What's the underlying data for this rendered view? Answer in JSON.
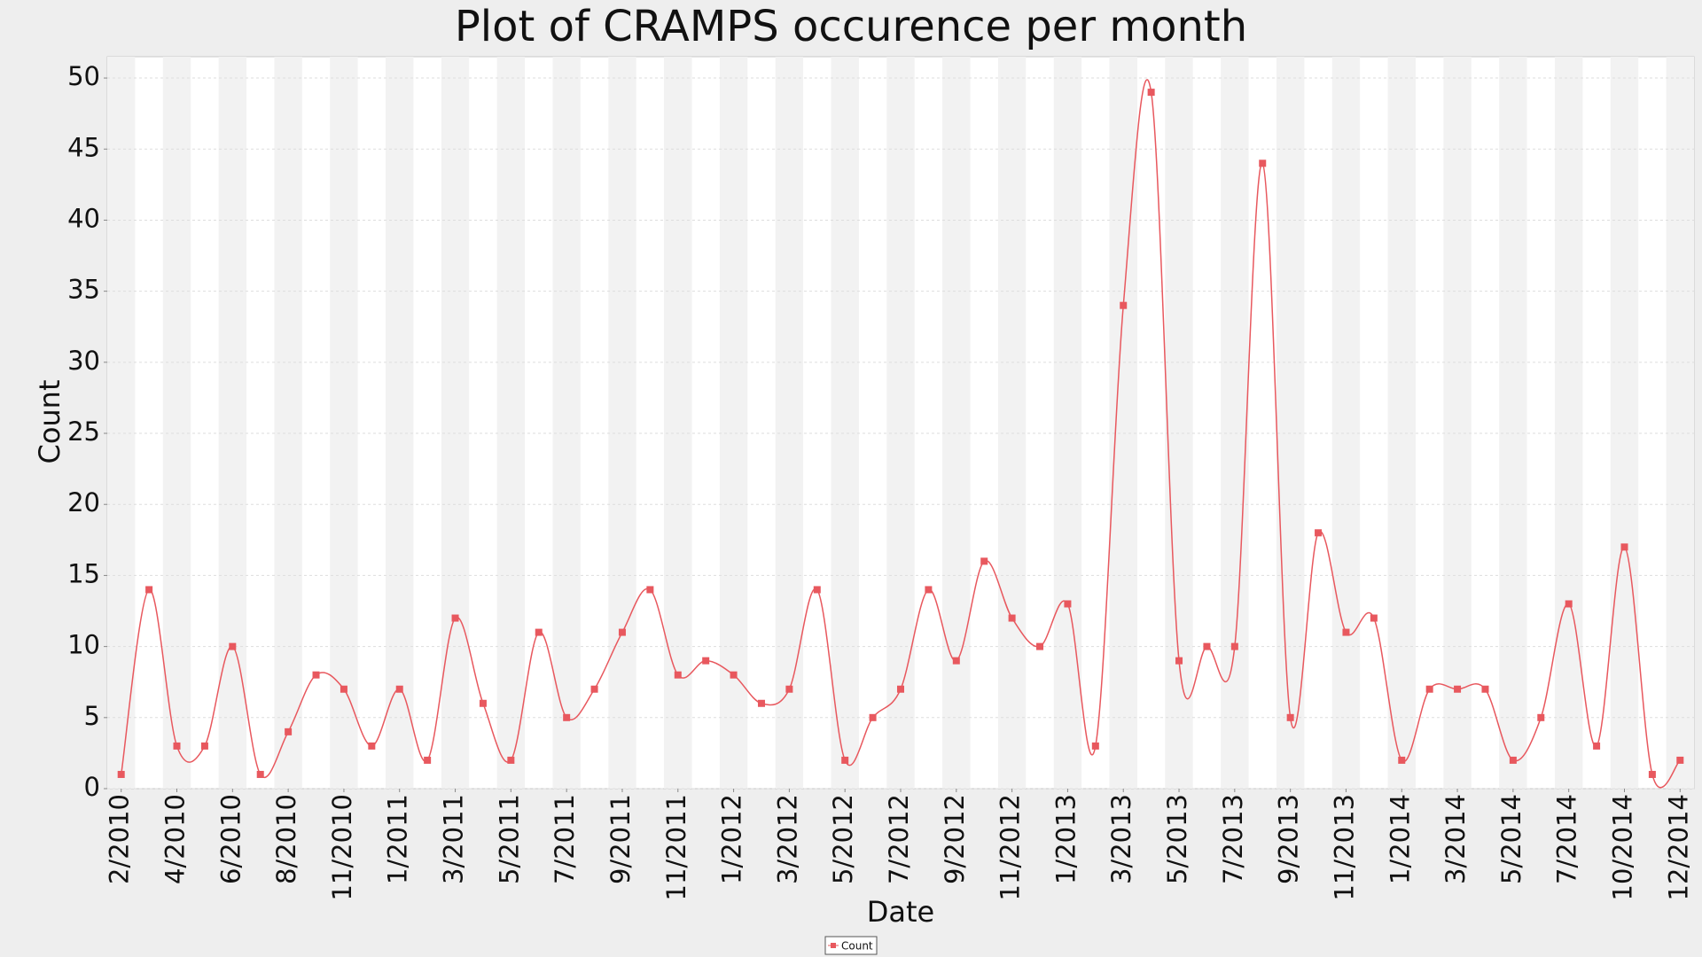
{
  "chart_data": {
    "type": "line",
    "title": "Plot of CRAMPS occurence per month",
    "x_label": "Date",
    "y_label": "Count",
    "categories": [
      "2/2010",
      null,
      "4/2010",
      null,
      "6/2010",
      null,
      "8/2010",
      null,
      "11/2010",
      null,
      "1/2011",
      null,
      "3/2011",
      null,
      "5/2011",
      null,
      "7/2011",
      null,
      "9/2011",
      null,
      "11/2011",
      null,
      "1/2012",
      null,
      "3/2012",
      null,
      "5/2012",
      null,
      "7/2012",
      null,
      "9/2012",
      null,
      "11/2012",
      null,
      "1/2013",
      null,
      "3/2013",
      null,
      "5/2013",
      null,
      "7/2013",
      null,
      "9/2013",
      null,
      "11/2013",
      null,
      "1/2014",
      null,
      "3/2014",
      null,
      "5/2014",
      null,
      "7/2014",
      null,
      "10/2014",
      null,
      "12/2014"
    ],
    "series": [
      {
        "name": "Count",
        "color": "#e8585e",
        "values": [
          1,
          14,
          3,
          3,
          10,
          1,
          4,
          8,
          7,
          3,
          7,
          2,
          12,
          6,
          2,
          11,
          5,
          7,
          11,
          14,
          8,
          9,
          8,
          6,
          7,
          14,
          2,
          5,
          7,
          14,
          9,
          16,
          12,
          10,
          13,
          3,
          34,
          49,
          9,
          10,
          10,
          44,
          5,
          18,
          11,
          12,
          2,
          7,
          7,
          7,
          2,
          5,
          13,
          3,
          17,
          1,
          2
        ]
      }
    ],
    "ylim": [
      0,
      51.5
    ],
    "yticks": [
      0,
      5,
      10,
      15,
      20,
      25,
      30,
      35,
      40,
      45,
      50
    ],
    "grid": true,
    "legend": "bottom"
  }
}
